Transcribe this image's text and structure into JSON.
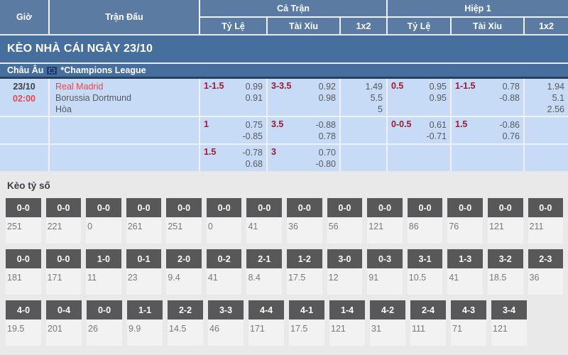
{
  "colors": {
    "header_bg": "#5b7ba3",
    "banner_bg": "#476f9e",
    "cell_bg": "#c7dbf7",
    "navy_divider": "#24405e",
    "score_box_bg": "#58585a",
    "accent_red": "#e8474b",
    "handicap_maroon": "#9c1b31",
    "section_bg": "#e9e9e9"
  },
  "header": {
    "col_time": "Giờ",
    "col_match": "Trận Đấu",
    "group_full": "Cả Trận",
    "group_half": "Hiệp 1",
    "sub_handicap": "Tỷ Lệ",
    "sub_overunder": "Tài Xỉu",
    "sub_1x2": "1x2"
  },
  "banner": {
    "title": "KÈO NHÀ CÁI NGÀY 23/10"
  },
  "league": {
    "region": "Châu Âu",
    "flag_icon": "eu-flag-icon",
    "name": "*Champions League"
  },
  "match": {
    "date": "23/10",
    "time": "02:00",
    "home": "Real Madrid",
    "away": "Borussia Dortmund",
    "draw": "Hòa"
  },
  "odds_rows": [
    {
      "ft_hdp": {
        "line": "1-1.5",
        "top": "0.99",
        "bottom": "0.91"
      },
      "ft_ou": {
        "line": "3-3.5",
        "top": "0.92",
        "bottom": "0.98"
      },
      "ft_1x2": [
        "1.49",
        "5.5",
        "5"
      ],
      "h1_hdp": {
        "line": "0.5",
        "top": "0.95",
        "bottom": "0.95"
      },
      "h1_ou": {
        "line": "1-1.5",
        "top": "0.78",
        "bottom": "-0.88"
      },
      "h1_1x2": [
        "1.94",
        "5.1",
        "2.56"
      ]
    },
    {
      "ft_hdp": {
        "line": "1",
        "top": "0.75",
        "bottom": "-0.85"
      },
      "ft_ou": {
        "line": "3.5",
        "top": "-0.88",
        "bottom": "0.78"
      },
      "ft_1x2": [],
      "h1_hdp": {
        "line": "0-0.5",
        "top": "0.61",
        "bottom": "-0.71"
      },
      "h1_ou": {
        "line": "1.5",
        "top": "-0.86",
        "bottom": "0.76"
      },
      "h1_1x2": []
    },
    {
      "ft_hdp": {
        "line": "1.5",
        "top": "-0.78",
        "bottom": "0.68"
      },
      "ft_ou": {
        "line": "3",
        "top": "0.70",
        "bottom": "-0.80"
      },
      "ft_1x2": [],
      "h1_hdp": {
        "line": "",
        "top": "",
        "bottom": ""
      },
      "h1_ou": {
        "line": "",
        "top": "",
        "bottom": ""
      },
      "h1_1x2": []
    }
  ],
  "correct_score": {
    "title": "Kèo tỷ số",
    "rows": [
      [
        {
          "score": "0-0",
          "odds": "251"
        },
        {
          "score": "0-0",
          "odds": "221"
        },
        {
          "score": "0-0",
          "odds": "0"
        },
        {
          "score": "0-0",
          "odds": "261"
        },
        {
          "score": "0-0",
          "odds": "251"
        },
        {
          "score": "0-0",
          "odds": "0"
        },
        {
          "score": "0-0",
          "odds": "41"
        },
        {
          "score": "0-0",
          "odds": "36"
        },
        {
          "score": "0-0",
          "odds": "56"
        },
        {
          "score": "0-0",
          "odds": "121"
        },
        {
          "score": "0-0",
          "odds": "86"
        },
        {
          "score": "0-0",
          "odds": "76"
        },
        {
          "score": "0-0",
          "odds": "121"
        },
        {
          "score": "0-0",
          "odds": "211"
        }
      ],
      [
        {
          "score": "0-0",
          "odds": "181"
        },
        {
          "score": "0-0",
          "odds": "171"
        },
        {
          "score": "1-0",
          "odds": "11"
        },
        {
          "score": "0-1",
          "odds": "23"
        },
        {
          "score": "2-0",
          "odds": "9.4"
        },
        {
          "score": "0-2",
          "odds": "41"
        },
        {
          "score": "2-1",
          "odds": "8.4"
        },
        {
          "score": "1-2",
          "odds": "17.5"
        },
        {
          "score": "3-0",
          "odds": "12"
        },
        {
          "score": "0-3",
          "odds": "91"
        },
        {
          "score": "3-1",
          "odds": "10.5"
        },
        {
          "score": "1-3",
          "odds": "41"
        },
        {
          "score": "3-2",
          "odds": "18.5"
        },
        {
          "score": "2-3",
          "odds": "36"
        }
      ],
      [
        {
          "score": "4-0",
          "odds": "19.5"
        },
        {
          "score": "0-4",
          "odds": "201"
        },
        {
          "score": "0-0",
          "odds": "26"
        },
        {
          "score": "1-1",
          "odds": "9.9"
        },
        {
          "score": "2-2",
          "odds": "14.5"
        },
        {
          "score": "3-3",
          "odds": "46"
        },
        {
          "score": "4-4",
          "odds": "171"
        },
        {
          "score": "4-1",
          "odds": "17.5"
        },
        {
          "score": "1-4",
          "odds": "121"
        },
        {
          "score": "4-2",
          "odds": "31"
        },
        {
          "score": "2-4",
          "odds": "111"
        },
        {
          "score": "4-3",
          "odds": "71"
        },
        {
          "score": "3-4",
          "odds": "121"
        }
      ]
    ]
  }
}
